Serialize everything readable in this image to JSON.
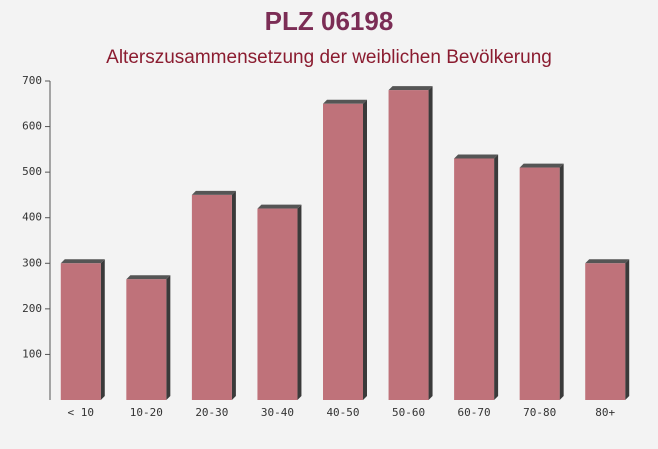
{
  "chart_data": {
    "type": "bar",
    "title": "PLZ 06198",
    "subtitle": "Alterszusammensetzung der weiblichen Bevölkerung",
    "categories": [
      "< 10",
      "10-20",
      "20-30",
      "30-40",
      "40-50",
      "50-60",
      "60-70",
      "70-80",
      "80+"
    ],
    "values": [
      300,
      265,
      450,
      420,
      650,
      680,
      530,
      510,
      300
    ],
    "color": "#b9646d",
    "ylim": [
      0,
      700
    ],
    "yticks": [
      100,
      200,
      300,
      400,
      500,
      600,
      700
    ]
  }
}
